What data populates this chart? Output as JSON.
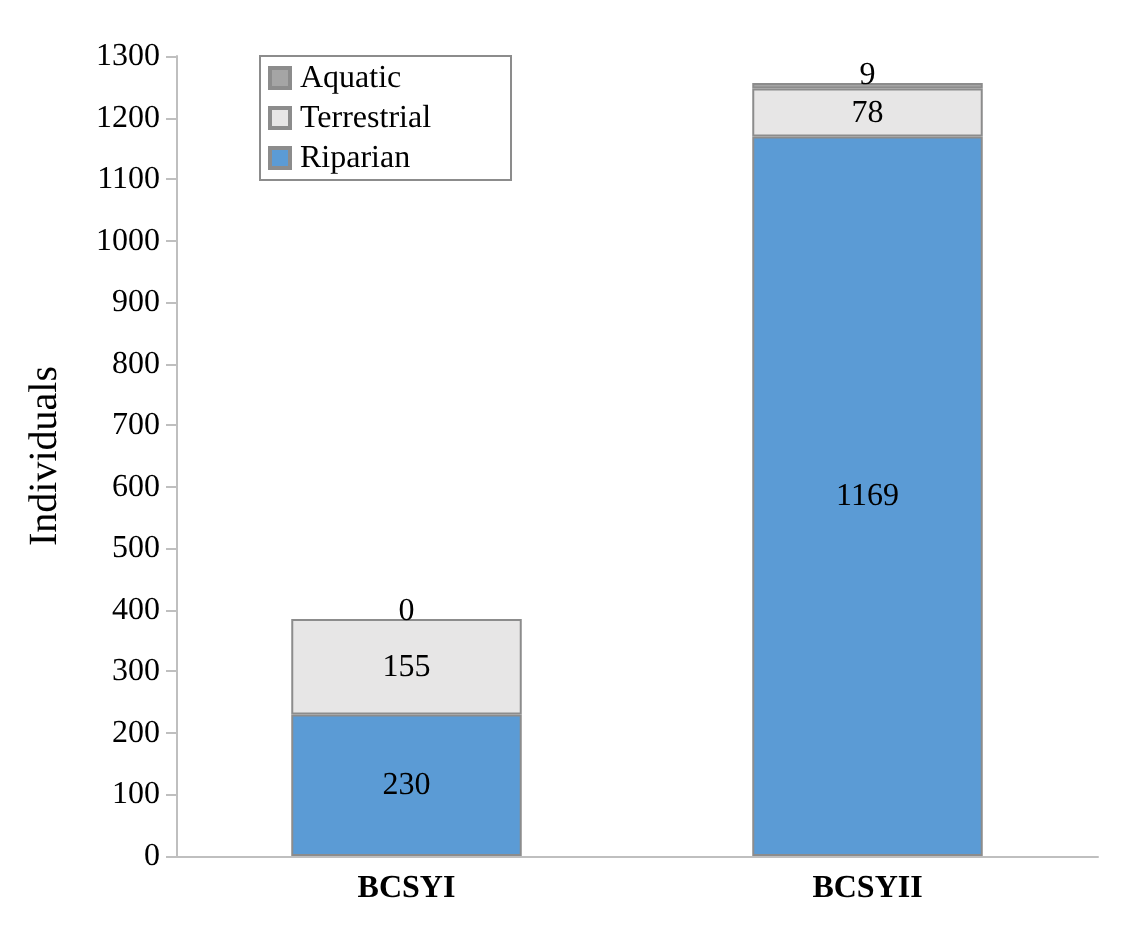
{
  "chart_data": {
    "type": "bar",
    "stacked": true,
    "ylabel": "Individuals",
    "categories": [
      "BCSYI",
      "BCSYII"
    ],
    "series": [
      {
        "name": "Riparian",
        "color": "#5b9bd5",
        "values": [
          230,
          1169
        ]
      },
      {
        "name": "Terrestrial",
        "color": "#e7e6e6",
        "values": [
          155,
          78
        ]
      },
      {
        "name": "Aquatic",
        "color": "#a5a5a5",
        "values": [
          0,
          9
        ]
      }
    ],
    "ylim": [
      0,
      1300
    ],
    "yticks": [
      0,
      100,
      200,
      300,
      400,
      500,
      600,
      700,
      800,
      900,
      1000,
      1100,
      1200,
      1300
    ],
    "data_labels": true,
    "legend": "top left",
    "grid": false
  }
}
